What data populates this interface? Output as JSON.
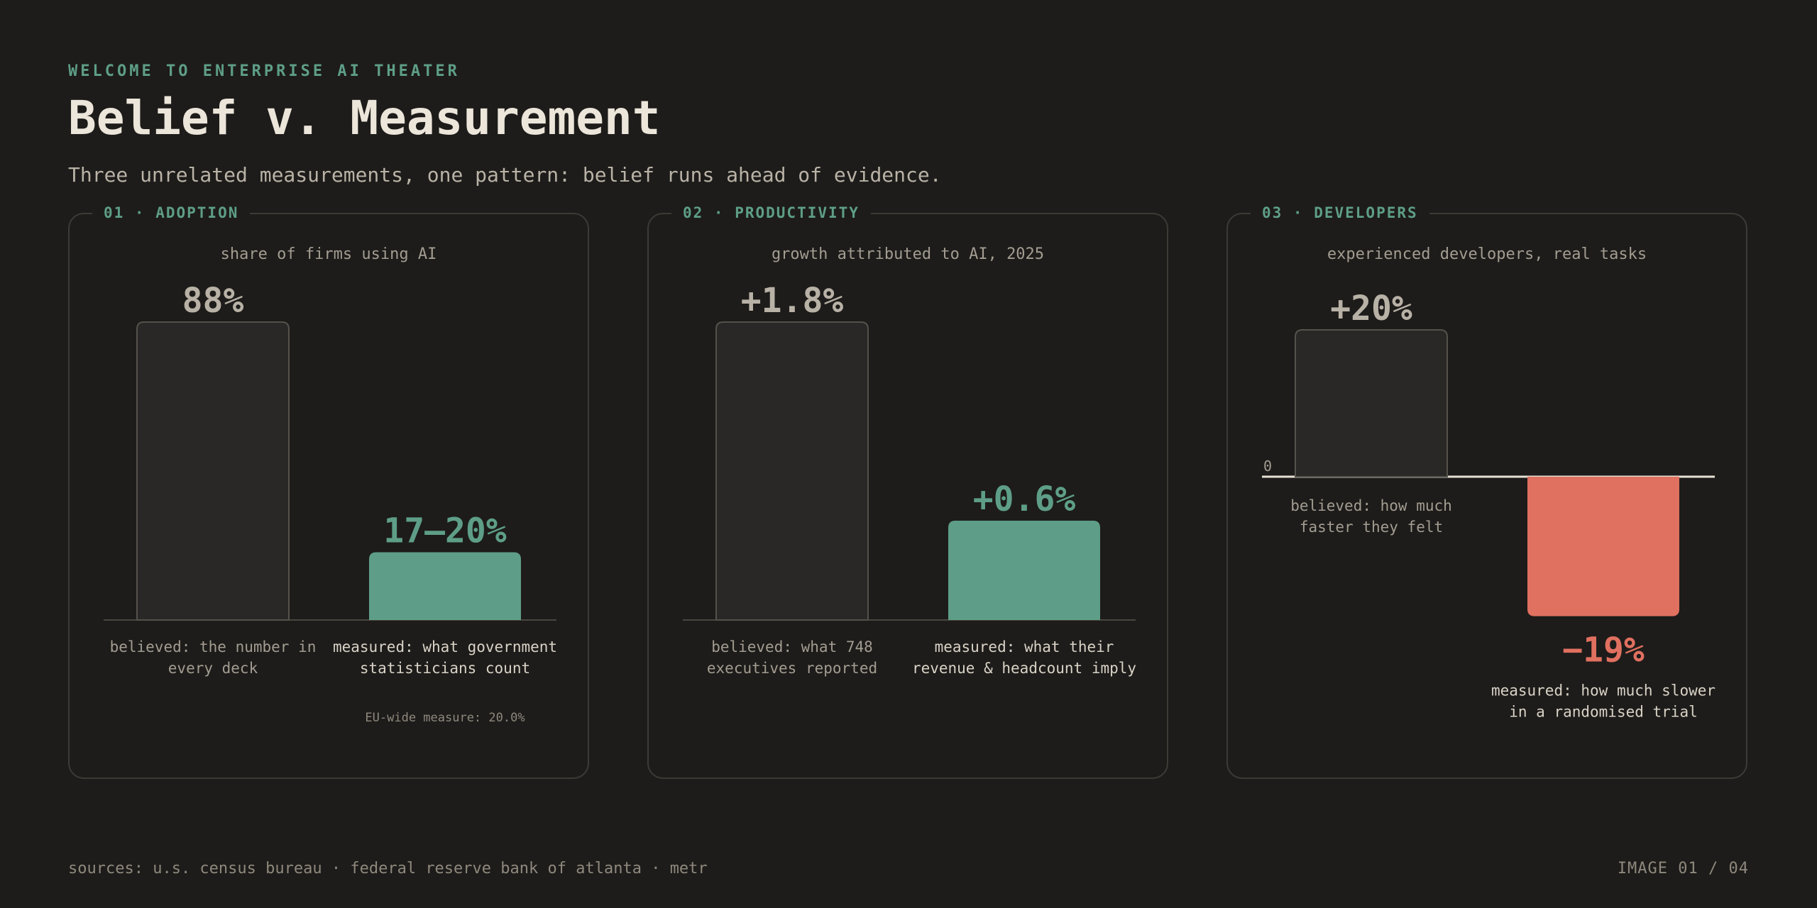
{
  "header": {
    "eyebrow": "WELCOME TO ENTERPRISE AI THEATER",
    "title": "Belief v. Measurement",
    "subtitle": "Three unrelated measurements, one pattern: belief runs ahead of evidence."
  },
  "colors": {
    "accent": "#5e9e88",
    "negative": "#e07060",
    "believed_bar": "#292826",
    "believed_stroke": "#55514b",
    "text_muted": "#a39c91",
    "text_value": "#b8b1a6"
  },
  "chart_data": [
    {
      "type": "bar",
      "label": "01 · ADOPTION",
      "caption": "share of firms using AI",
      "ylim": [
        0,
        88
      ],
      "bars": [
        {
          "value": 88,
          "value_label": "88%",
          "kind": "believed",
          "desc": [
            "believed: the number in",
            "every deck"
          ]
        },
        {
          "value": 20,
          "value_label": "17–20%",
          "kind": "measured",
          "desc": [
            "measured: what government",
            "statisticians count"
          ]
        }
      ],
      "note": "EU-wide measure: 20.0%"
    },
    {
      "type": "bar",
      "label": "02 · PRODUCTIVITY",
      "caption": "growth attributed to AI, 2025",
      "ylim": [
        0,
        1.8
      ],
      "bars": [
        {
          "value": 1.8,
          "value_label": "+1.8%",
          "kind": "believed",
          "desc": [
            "believed: what 748",
            "executives reported"
          ]
        },
        {
          "value": 0.6,
          "value_label": "+0.6%",
          "kind": "measured",
          "desc": [
            "measured: what their",
            "revenue & headcount imply"
          ]
        }
      ]
    },
    {
      "type": "bar",
      "label": "03 · DEVELOPERS",
      "caption": "experienced developers, real tasks",
      "ylim": [
        -19,
        20
      ],
      "zero_label": "0",
      "bars": [
        {
          "value": 20,
          "value_label": "+20%",
          "kind": "believed",
          "desc": [
            "believed: how much",
            "faster they felt"
          ]
        },
        {
          "value": -19,
          "value_label": "−19%",
          "kind": "negative",
          "desc": [
            "measured: how much slower",
            "in a randomised trial"
          ]
        }
      ]
    }
  ],
  "footer": {
    "sources": "sources: u.s. census bureau · federal reserve bank of atlanta · metr",
    "page": "IMAGE 01 / 04"
  }
}
